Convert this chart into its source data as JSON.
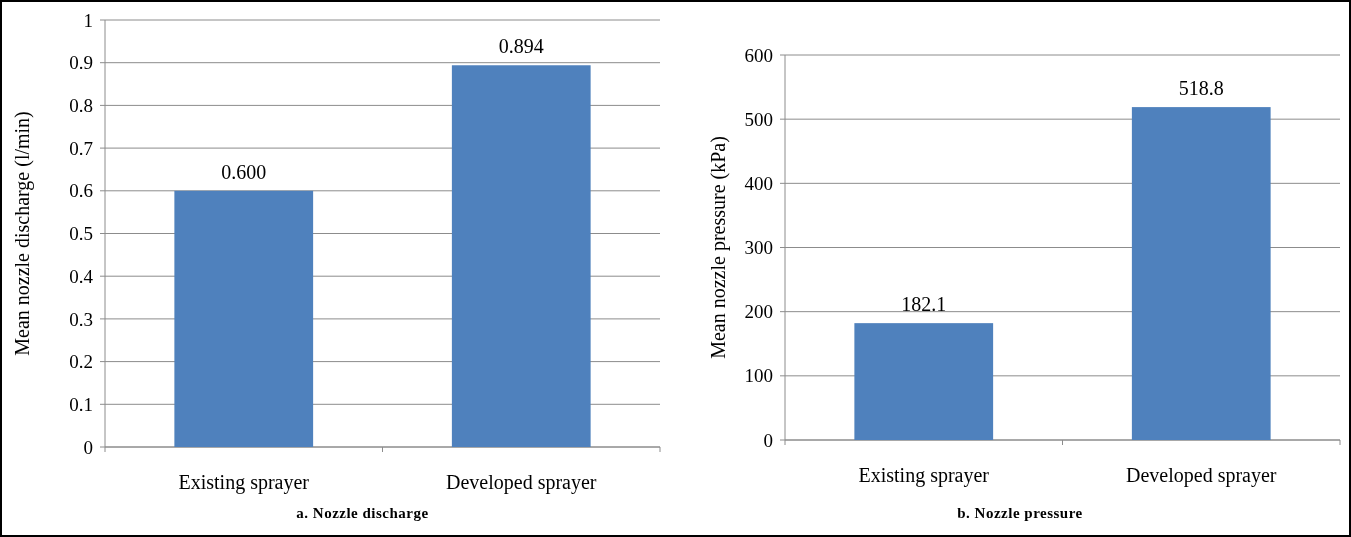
{
  "chart_data": [
    {
      "type": "bar",
      "title": "a. Nozzle discharge",
      "ylabel": "Mean nozzle discharge (l/min)",
      "categories": [
        "Existing sprayer",
        "Developed sprayer"
      ],
      "values": [
        0.6,
        0.894
      ],
      "value_labels": [
        "0.600",
        "0.894"
      ],
      "color": "#4f81bd",
      "ylim": [
        0,
        1
      ],
      "yticks": [
        0,
        0.1,
        0.2,
        0.3,
        0.4,
        0.5,
        0.6,
        0.7,
        0.8,
        0.9,
        1
      ],
      "grid": "y"
    },
    {
      "type": "bar",
      "title": "b. Nozzle pressure",
      "ylabel": "Mean nozzle pressure (kPa)",
      "categories": [
        "Existing sprayer",
        "Developed sprayer"
      ],
      "values": [
        182.1,
        518.8
      ],
      "value_labels": [
        "182.1",
        "518.8"
      ],
      "color": "#4f81bd",
      "ylim": [
        0,
        600
      ],
      "yticks": [
        0,
        100,
        200,
        300,
        400,
        500,
        600
      ],
      "grid": "y"
    }
  ]
}
